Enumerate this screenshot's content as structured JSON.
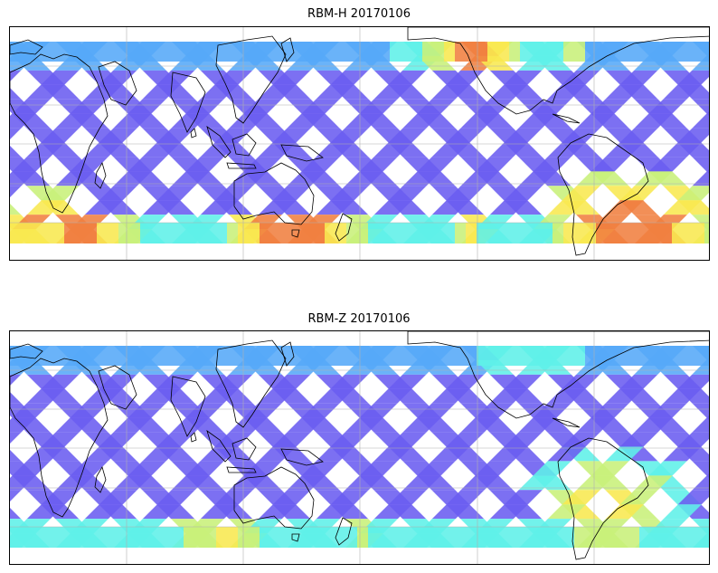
{
  "panels": [
    {
      "title": "RBM-H 20170106",
      "hotspots": [
        {
          "region": "south-atlantic",
          "color": "#d84a4a"
        },
        {
          "region": "south-africa-tip",
          "color": "#f07030"
        },
        {
          "region": "southern-indian-ocean",
          "color": "#f08040"
        },
        {
          "region": "north-pacific",
          "color": "#f0e050"
        }
      ]
    },
    {
      "title": "RBM-Z 20170106",
      "hotspots": [
        {
          "region": "south-atlantic",
          "color": "#f0a040"
        },
        {
          "region": "southern-indian-ocean",
          "color": "#f0e050"
        }
      ]
    }
  ],
  "colors": {
    "low": "#6a5cf0",
    "mid_low": "#55a8f8",
    "mid": "#5ef0e8",
    "mid_high": "#c8f07a",
    "high": "#f8e850",
    "very_high": "#f08040",
    "max": "#d84a4a",
    "coastline": "#000000",
    "grid": "#b0b0b0"
  }
}
